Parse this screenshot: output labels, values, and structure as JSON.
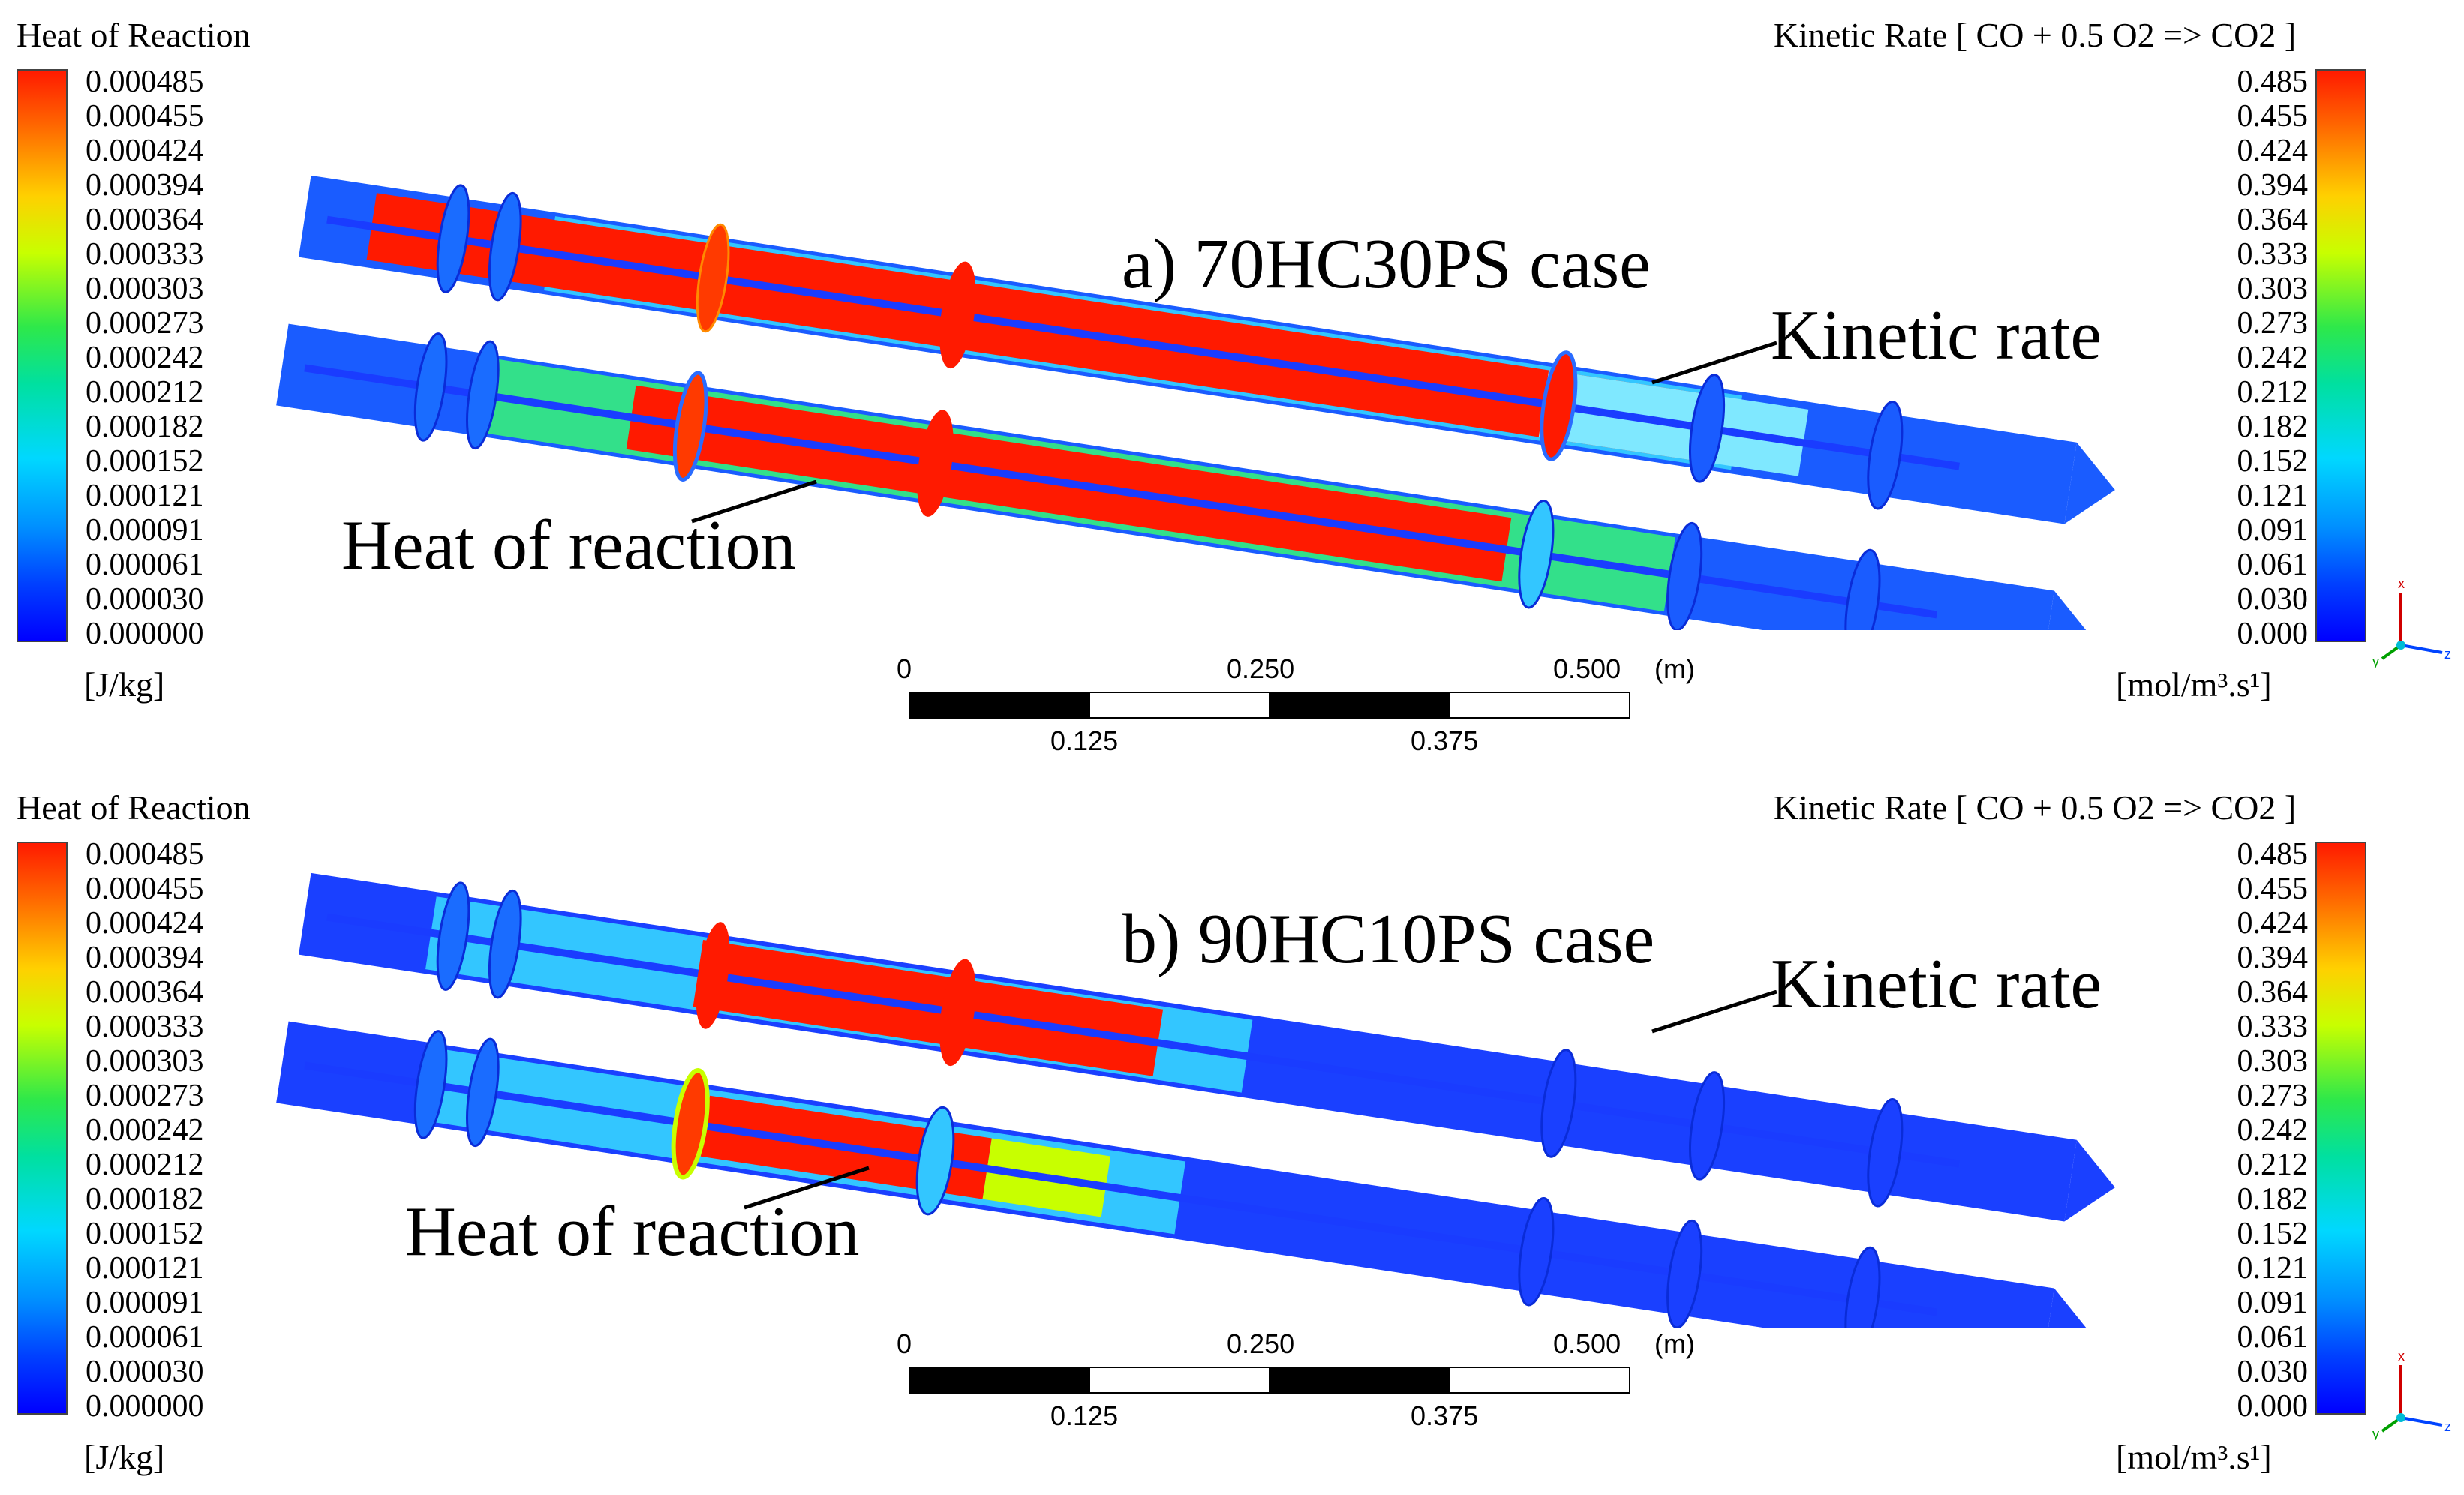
{
  "panels": [
    {
      "id": "a",
      "case_label": "a) 70HC30PS case",
      "kinetic_label": "Kinetic rate",
      "heat_label": "Heat of reaction",
      "left_colorbar": {
        "title": "Heat of Reaction",
        "ticks": [
          "0.000485",
          "0.000455",
          "0.000424",
          "0.000394",
          "0.000364",
          "0.000333",
          "0.000303",
          "0.000273",
          "0.000242",
          "0.000212",
          "0.000182",
          "0.000152",
          "0.000121",
          "0.000091",
          "0.000061",
          "0.000030",
          "0.000000"
        ],
        "unit": "[J/kg]"
      },
      "right_colorbar": {
        "title": "Kinetic Rate [ CO + 0.5 O2 => CO2 ]",
        "ticks": [
          "0.485",
          "0.455",
          "0.424",
          "0.394",
          "0.364",
          "0.333",
          "0.303",
          "0.273",
          "0.242",
          "0.212",
          "0.182",
          "0.152",
          "0.121",
          "0.091",
          "0.061",
          "0.030",
          "0.000"
        ],
        "unit": "[mol/m³.s¹]"
      },
      "scale_bar": {
        "top_labels": [
          "0",
          "0.250",
          "0.500",
          "(m)"
        ],
        "bottom_labels": [
          "0.125",
          "0.375"
        ]
      }
    },
    {
      "id": "b",
      "case_label": "b) 90HC10PS case",
      "kinetic_label": "Kinetic rate",
      "heat_label": "Heat of reaction",
      "left_colorbar": {
        "title": "Heat of Reaction",
        "ticks": [
          "0.000485",
          "0.000455",
          "0.000424",
          "0.000394",
          "0.000364",
          "0.000333",
          "0.000303",
          "0.000273",
          "0.000242",
          "0.000212",
          "0.000182",
          "0.000152",
          "0.000121",
          "0.000091",
          "0.000061",
          "0.000030",
          "0.000000"
        ],
        "unit": "[J/kg]"
      },
      "right_colorbar": {
        "title": "Kinetic Rate [ CO + 0.5 O2 => CO2 ]",
        "ticks": [
          "0.485",
          "0.455",
          "0.424",
          "0.394",
          "0.364",
          "0.333",
          "0.303",
          "0.273",
          "0.242",
          "0.212",
          "0.182",
          "0.152",
          "0.121",
          "0.091",
          "0.061",
          "0.030",
          "0.000"
        ],
        "unit": "[mol/m³.s¹]"
      },
      "scale_bar": {
        "top_labels": [
          "0",
          "0.250",
          "0.500",
          "(m)"
        ],
        "bottom_labels": [
          "0.125",
          "0.375"
        ]
      }
    }
  ],
  "axis_triad": {
    "labels": [
      "x",
      "y",
      "z"
    ]
  },
  "colors": {
    "hot": "#ff1a00",
    "cold": "#0000ff",
    "mid": "#00d8ff"
  }
}
